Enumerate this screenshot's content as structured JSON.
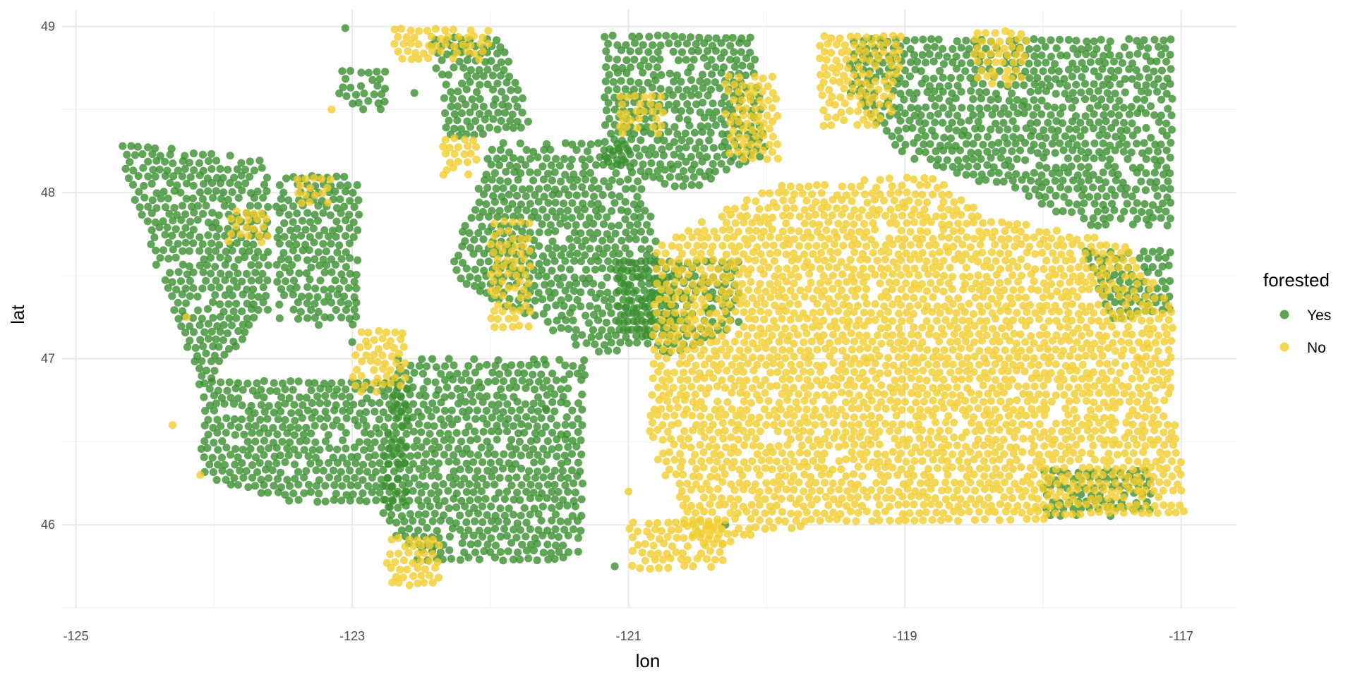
{
  "chart_data": {
    "type": "scatter",
    "xlabel": "lon",
    "ylabel": "lat",
    "xlim": [
      -125.1,
      -116.6
    ],
    "ylim": [
      45.5,
      49.1
    ],
    "x_ticks": [
      -125,
      -123,
      -121,
      -119,
      -117
    ],
    "y_ticks": [
      46,
      47,
      48,
      49
    ],
    "x_tick_labels": [
      "-125",
      "-123",
      "-121",
      "-119",
      "-117"
    ],
    "y_tick_labels": [
      "46",
      "47",
      "48",
      "49"
    ],
    "grid": true,
    "legend": {
      "title": "forested",
      "placement": "right",
      "entries": [
        {
          "label": "Yes",
          "color": "#3a8f2e"
        },
        {
          "label": "No",
          "color": "#f2cd2e"
        }
      ]
    },
    "point_alpha": 0.8,
    "series": [
      {
        "label": "Yes",
        "color": "#3a8f2e",
        "regions": [
          {
            "points": [
              [
                -124.7,
                48.3
              ],
              [
                -123.6,
                48.2
              ],
              [
                -123.6,
                47.3
              ],
              [
                -124.1,
                46.8
              ],
              [
                -124.35,
                47.4
              ],
              [
                -124.6,
                48.0
              ]
            ]
          },
          {
            "points": [
              [
                -124.1,
                46.9
              ],
              [
                -122.6,
                46.9
              ],
              [
                -122.6,
                46.1
              ],
              [
                -123.6,
                46.15
              ],
              [
                -124.1,
                46.3
              ]
            ]
          },
          {
            "points": [
              [
                -123.2,
                48.1
              ],
              [
                -122.95,
                48.1
              ],
              [
                -122.95,
                47.2
              ],
              [
                -123.55,
                47.2
              ],
              [
                -123.55,
                48.1
              ]
            ]
          },
          {
            "points": [
              [
                -122.7,
                47.0
              ],
              [
                -121.3,
                47.0
              ],
              [
                -121.35,
                45.8
              ],
              [
                -122.5,
                45.75
              ],
              [
                -122.8,
                46.05
              ]
            ]
          },
          {
            "points": [
              [
                -122.0,
                48.3
              ],
              [
                -121.0,
                48.3
              ],
              [
                -120.6,
                47.2
              ],
              [
                -121.2,
                47.0
              ],
              [
                -122.3,
                47.5
              ]
            ]
          },
          {
            "points": [
              [
                -122.45,
                48.95
              ],
              [
                -121.9,
                48.95
              ],
              [
                -121.7,
                48.4
              ],
              [
                -122.3,
                48.3
              ]
            ]
          },
          {
            "points": [
              [
                -121.1,
                47.6
              ],
              [
                -120.2,
                47.6
              ],
              [
                -120.2,
                47.2
              ],
              [
                -120.7,
                47.0
              ],
              [
                -121.1,
                47.2
              ]
            ]
          },
          {
            "points": [
              [
                -121.2,
                48.95
              ],
              [
                -120.1,
                48.95
              ],
              [
                -120.0,
                48.2
              ],
              [
                -120.6,
                48.0
              ],
              [
                -121.2,
                48.2
              ]
            ]
          },
          {
            "points": [
              [
                -119.4,
                48.95
              ],
              [
                -117.05,
                48.95
              ],
              [
                -117.05,
                47.8
              ],
              [
                -117.7,
                47.8
              ],
              [
                -118.2,
                48.0
              ],
              [
                -119.0,
                48.2
              ],
              [
                -119.4,
                48.6
              ]
            ]
          },
          {
            "points": [
              [
                -117.7,
                47.65
              ],
              [
                -117.05,
                47.65
              ],
              [
                -117.05,
                47.3
              ],
              [
                -117.5,
                47.2
              ]
            ]
          },
          {
            "points": [
              [
                -118.0,
                46.35
              ],
              [
                -117.2,
                46.35
              ],
              [
                -117.2,
                46.05
              ],
              [
                -118.0,
                46.05
              ]
            ]
          },
          {
            "points": [
              [
                -123.1,
                48.75
              ],
              [
                -122.75,
                48.75
              ],
              [
                -122.75,
                48.5
              ],
              [
                -123.1,
                48.5
              ]
            ]
          }
        ],
        "scatter_points": [
          [
            -123.05,
            48.99
          ],
          [
            -122.55,
            48.6
          ],
          [
            -121.6,
            46.7
          ],
          [
            -123.0,
            47.1
          ],
          [
            -120.3,
            46.0
          ],
          [
            -121.1,
            45.75
          ]
        ]
      },
      {
        "label": "No",
        "color": "#f2cd2e",
        "regions": [
          {
            "points": [
              [
                -120.8,
                47.7
              ],
              [
                -119.9,
                48.05
              ],
              [
                -118.8,
                48.1
              ],
              [
                -118.4,
                47.85
              ],
              [
                -117.4,
                47.7
              ],
              [
                -117.05,
                47.3
              ],
              [
                -117.05,
                46.8
              ],
              [
                -116.95,
                46.05
              ],
              [
                -119.7,
                46.0
              ],
              [
                -120.5,
                45.85
              ],
              [
                -120.85,
                46.5
              ]
            ]
          },
          {
            "points": [
              [
                -121.0,
                46.05
              ],
              [
                -120.3,
                46.05
              ],
              [
                -120.3,
                45.75
              ],
              [
                -121.0,
                45.7
              ]
            ]
          },
          {
            "points": [
              [
                -122.75,
                45.95
              ],
              [
                -122.35,
                45.95
              ],
              [
                -122.35,
                45.6
              ],
              [
                -122.75,
                45.65
              ]
            ]
          },
          {
            "points": [
              [
                -119.65,
                48.95
              ],
              [
                -119.0,
                48.95
              ],
              [
                -119.1,
                48.4
              ],
              [
                -119.6,
                48.4
              ]
            ]
          },
          {
            "points": [
              [
                -120.3,
                48.7
              ],
              [
                -119.9,
                48.7
              ],
              [
                -119.9,
                48.2
              ],
              [
                -120.3,
                48.2
              ]
            ]
          },
          {
            "points": [
              [
                -122.0,
                47.85
              ],
              [
                -121.7,
                47.85
              ],
              [
                -121.7,
                47.15
              ],
              [
                -122.0,
                47.15
              ]
            ]
          },
          {
            "points": [
              [
                -123.0,
                47.2
              ],
              [
                -122.6,
                47.2
              ],
              [
                -122.6,
                46.8
              ],
              [
                -123.0,
                46.8
              ]
            ]
          },
          {
            "points": [
              [
                -122.35,
                48.35
              ],
              [
                -122.1,
                48.35
              ],
              [
                -122.1,
                48.1
              ],
              [
                -122.35,
                48.1
              ]
            ]
          },
          {
            "points": [
              [
                -122.7,
                48.99
              ],
              [
                -122.0,
                48.99
              ],
              [
                -122.0,
                48.8
              ],
              [
                -122.7,
                48.8
              ]
            ]
          },
          {
            "points": [
              [
                -118.5,
                49.0
              ],
              [
                -118.1,
                49.0
              ],
              [
                -118.1,
                48.65
              ],
              [
                -118.5,
                48.65
              ]
            ]
          },
          {
            "points": [
              [
                -123.9,
                47.9
              ],
              [
                -123.6,
                47.9
              ],
              [
                -123.6,
                47.7
              ],
              [
                -123.9,
                47.7
              ]
            ]
          },
          {
            "points": [
              [
                -123.4,
                48.1
              ],
              [
                -123.15,
                48.1
              ],
              [
                -123.15,
                47.9
              ],
              [
                -123.4,
                47.9
              ]
            ]
          },
          {
            "points": [
              [
                -121.1,
                48.6
              ],
              [
                -120.75,
                48.6
              ],
              [
                -120.75,
                48.35
              ],
              [
                -121.1,
                48.35
              ]
            ]
          }
        ],
        "scatter_points": [
          [
            -124.3,
            46.6
          ],
          [
            -124.1,
            46.3
          ],
          [
            -124.2,
            47.25
          ],
          [
            -123.15,
            48.5
          ],
          [
            -121.0,
            46.2
          ],
          [
            -117.3,
            47.0
          ],
          [
            -117.3,
            46.2
          ]
        ]
      }
    ]
  }
}
